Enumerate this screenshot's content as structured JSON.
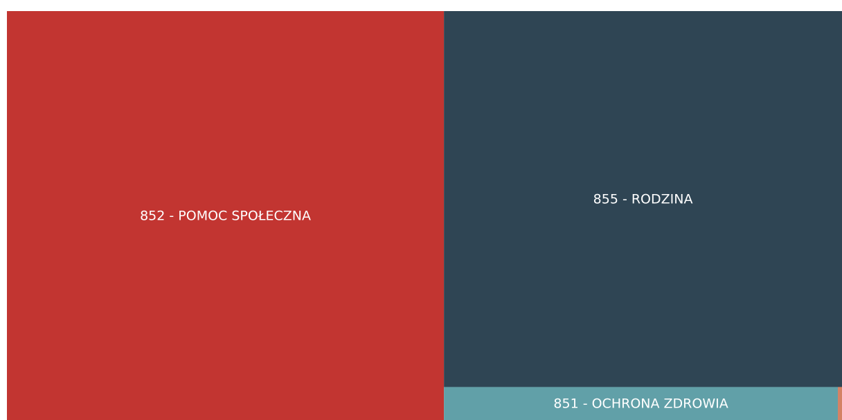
{
  "chart_data": {
    "type": "treemap",
    "categories": [
      "852 - POMOC SPOŁECZNA",
      "855 - RODZINA",
      "851 - OCHRONA ZDROWIA",
      null
    ],
    "values": [
      52.3,
      43.8,
      3.8,
      0.04
    ],
    "colors": [
      "#c23531",
      "#2f4554",
      "#61a0a8",
      "#d48265"
    ]
  }
}
